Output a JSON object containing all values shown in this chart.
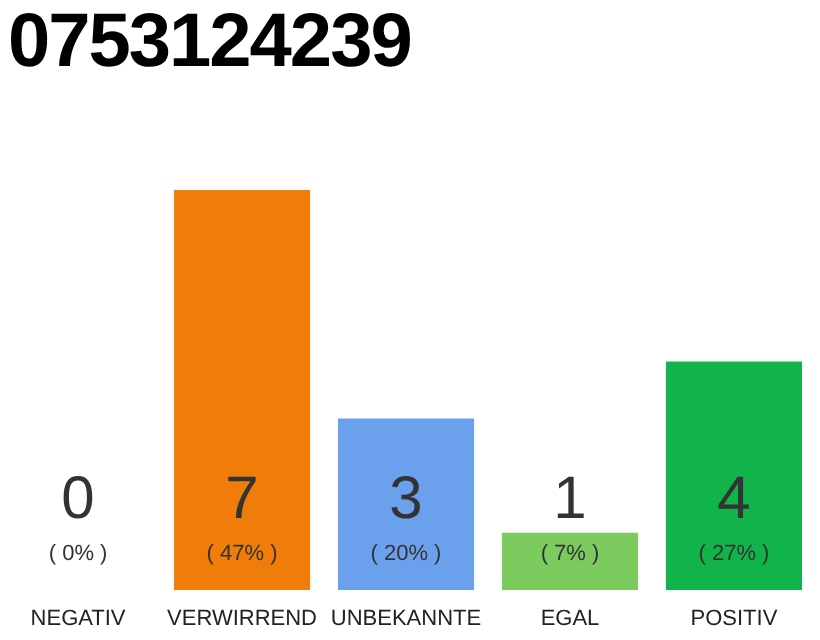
{
  "chart_data": {
    "type": "bar",
    "title": "0753124239",
    "categories": [
      "NEGATIV",
      "VERWIRREND",
      "UNBEKANNTE",
      "EGAL",
      "POSITIV"
    ],
    "values": [
      0,
      7,
      3,
      1,
      4
    ],
    "colors": [
      "#555555",
      "#f07d0a",
      "#6aa0ec",
      "#7ccb5f",
      "#10b44a"
    ],
    "ylim": [
      0,
      7
    ],
    "tick_labels": "x",
    "data_labels": true,
    "annotations": [
      "( 0% )",
      "( 47% )",
      "( 20% )",
      "( 7% )",
      "( 27% )"
    ]
  }
}
